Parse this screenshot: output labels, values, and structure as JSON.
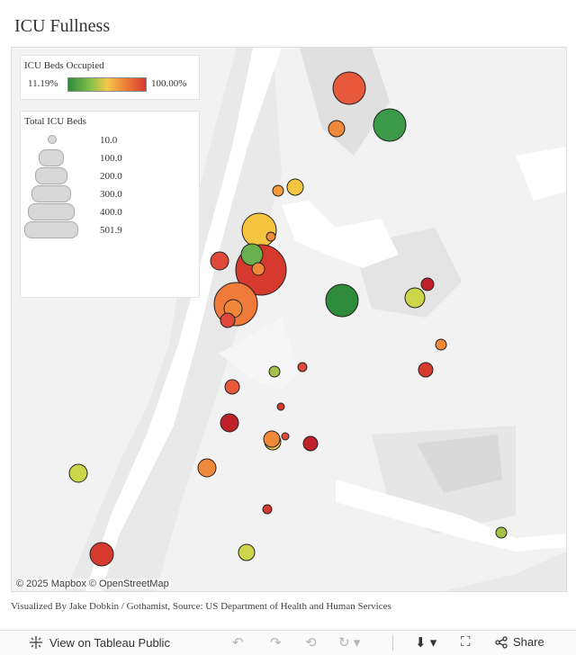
{
  "title": "ICU Fullness",
  "legend_color": {
    "title": "ICU Beds Occupied",
    "min_label": "11.19%",
    "max_label": "100.00%"
  },
  "legend_size": {
    "title": "Total ICU Beds",
    "values": [
      "10.0",
      "100.0",
      "200.0",
      "300.0",
      "400.0",
      "501.9"
    ]
  },
  "map": {
    "attribution": "© 2025 Mapbox  © OpenStreetMap",
    "colors": {
      "green": "#2e8b3a",
      "lightgreen": "#6ab04c",
      "yellow": "#f5c542",
      "olive": "#cdd64a",
      "orange": "#f0883a",
      "red": "#d63a2e",
      "darkred": "#c0202a"
    }
  },
  "caption": "Visualized By Jake Dobkin / Gothamist, Source: US Department of Health and Human Services",
  "toolbar": {
    "view_label": "View on Tableau Public",
    "share_label": "Share"
  }
}
